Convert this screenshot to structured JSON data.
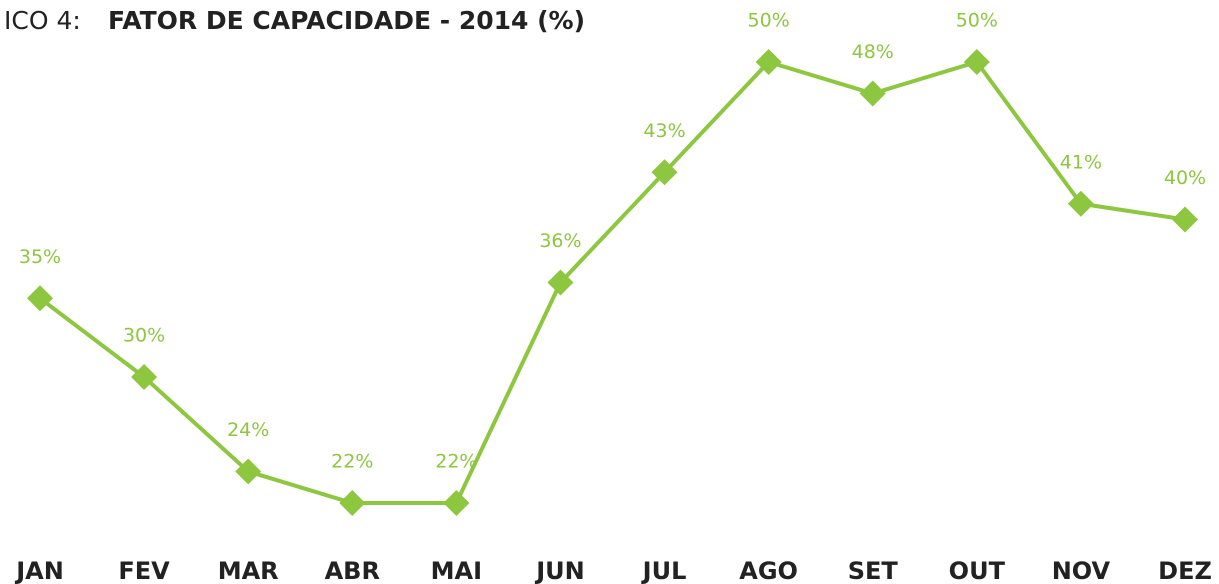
{
  "chart_data": {
    "type": "line",
    "title_prefix": "ICO 4:",
    "title": "FATOR DE CAPACIDADE - 2014 (%)",
    "categories": [
      "JAN",
      "FEV",
      "MAR",
      "ABR",
      "MAI",
      "JUN",
      "JUL",
      "AGO",
      "SET",
      "OUT",
      "NOV",
      "DEZ"
    ],
    "values": [
      35,
      30,
      24,
      22,
      22,
      36,
      43,
      50,
      48,
      50,
      41,
      40
    ],
    "value_labels": [
      "35%",
      "30%",
      "24%",
      "22%",
      "22%",
      "36%",
      "43%",
      "50%",
      "48%",
      "50%",
      "41%",
      "40%"
    ],
    "color": "#8dc63f"
  }
}
